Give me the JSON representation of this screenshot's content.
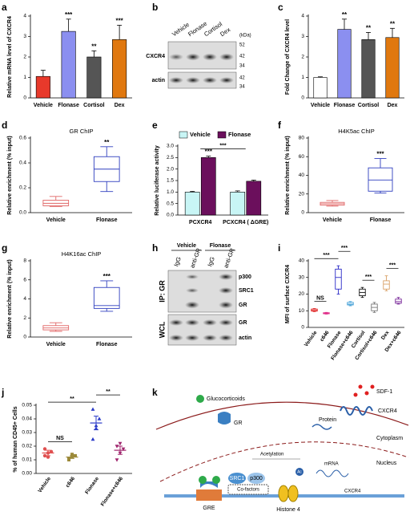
{
  "chart_data": [
    {
      "type": "bar",
      "panel": "a",
      "ylabel": "Relative mRNA level of CXCR4",
      "categories": [
        "Vehicle",
        "Flonase",
        "Cortisol",
        "Dex"
      ],
      "values": [
        1.05,
        3.25,
        2.0,
        2.85
      ],
      "errors": [
        0.3,
        0.6,
        0.3,
        0.7
      ],
      "colors": [
        "#e8392b",
        "#8b8ff0",
        "#555555",
        "#e0780f"
      ],
      "significance": [
        null,
        "***",
        "**",
        "***"
      ],
      "ylim": [
        0,
        4
      ],
      "yticks": [
        0,
        1,
        2,
        3,
        4
      ]
    },
    {
      "type": "bar",
      "panel": "c",
      "ylabel": "Fold Change of CXCR4 level",
      "categories": [
        "Vehicle",
        "Flonase",
        "Cortisol",
        "Dex"
      ],
      "values": [
        1.0,
        3.35,
        2.85,
        2.95
      ],
      "errors": [
        0.03,
        0.5,
        0.35,
        0.45
      ],
      "colors": [
        "#ffffff",
        "#8b8ff0",
        "#555555",
        "#e0780f"
      ],
      "significance": [
        null,
        "**",
        "**",
        "**"
      ],
      "ylim": [
        0,
        4
      ],
      "yticks": [
        0,
        1,
        2,
        3,
        4
      ]
    },
    {
      "type": "box",
      "panel": "d",
      "title": "GR ChIP",
      "ylabel": "Relative enrichment (% input)",
      "categories": [
        "Vehicle",
        "Flonase"
      ],
      "boxes": [
        {
          "min": 0.05,
          "q1": 0.055,
          "median": 0.075,
          "q3": 0.1,
          "max": 0.13
        },
        {
          "min": 0.17,
          "q1": 0.25,
          "median": 0.35,
          "q3": 0.45,
          "max": 0.53
        }
      ],
      "colors": [
        "#e06666",
        "#2f3fbf"
      ],
      "significance": [
        null,
        "**"
      ],
      "ylim": [
        0,
        0.6
      ],
      "yticks": [
        {
          "value": 0,
          "label": "0.0"
        },
        {
          "value": 0.2,
          "label": "0.2"
        },
        {
          "value": 0.4,
          "label": "0.4"
        },
        {
          "value": 0.6,
          "label": "0.6"
        }
      ]
    },
    {
      "type": "grouped-bar",
      "panel": "e",
      "ylabel": "Relative luciferase activity",
      "categories": [
        "PCXCR4",
        "PCXCR4 ( ΔGRE)"
      ],
      "series": [
        {
          "name": "Vehicle",
          "color": "#c8f5f5",
          "values": [
            1.0,
            1.0
          ],
          "errors": [
            0.03,
            0.05
          ]
        },
        {
          "name": "Flonase",
          "color": "#6b0f5c",
          "values": [
            2.5,
            1.47
          ],
          "errors": [
            0.06,
            0.05
          ],
          "significance": [
            "***",
            null
          ]
        }
      ],
      "comparisons": [
        {
          "between": [
            "PCXCR4",
            "PCXCR4 ( ΔGRE)"
          ],
          "label": "***"
        }
      ],
      "ylim": [
        0,
        3
      ],
      "yticks": [
        {
          "value": 0,
          "label": "0.0"
        },
        {
          "value": 0.5,
          "label": "0.5"
        },
        {
          "value": 1,
          "label": "1.0"
        },
        {
          "value": 1.5,
          "label": "1.5"
        },
        {
          "value": 2,
          "label": "2.0"
        },
        {
          "value": 2.5,
          "label": "2.5"
        },
        {
          "value": 3,
          "label": "3.0"
        }
      ]
    },
    {
      "type": "box",
      "panel": "f",
      "title": "H4K5ac ChIP",
      "ylabel": "Relative enrichment (% input)",
      "categories": [
        "Vehicle",
        "Flonase"
      ],
      "boxes": [
        {
          "min": 7,
          "q1": 8,
          "median": 9.5,
          "q3": 11,
          "max": 13
        },
        {
          "min": 21,
          "q1": 23,
          "median": 35,
          "q3": 48,
          "max": 58
        }
      ],
      "colors": [
        "#e06666",
        "#2f3fbf"
      ],
      "significance": [
        null,
        "***"
      ],
      "ylim": [
        0,
        80
      ],
      "yticks": [
        0,
        20,
        40,
        60,
        80
      ]
    },
    {
      "type": "box",
      "panel": "g",
      "title": "H4K16ac ChIP",
      "ylabel": "Relative enrichment (% input)",
      "categories": [
        "Vehicle",
        "Flonase"
      ],
      "boxes": [
        {
          "min": 0.6,
          "q1": 0.75,
          "median": 0.95,
          "q3": 1.2,
          "max": 1.5
        },
        {
          "min": 2.7,
          "q1": 3.0,
          "median": 3.3,
          "q3": 5.2,
          "max": 5.9
        }
      ],
      "colors": [
        "#e06666",
        "#2f3fbf"
      ],
      "significance": [
        null,
        "***"
      ],
      "ylim": [
        0,
        8
      ],
      "yticks": [
        0,
        2,
        4,
        6,
        8
      ]
    },
    {
      "type": "box",
      "panel": "i",
      "ylabel": "MFI of surface CXCR4",
      "categories": [
        "Vehicle",
        "c646",
        "Flonase",
        "Flonase+c646",
        "Cortisol",
        "Cortisol+c646",
        "Dex",
        "Dex+c646"
      ],
      "boxes": [
        {
          "min": 9.5,
          "q1": 9.8,
          "median": 10.2,
          "q3": 11,
          "max": 11.3
        },
        {
          "min": 8,
          "q1": 8.2,
          "median": 8.5,
          "q3": 8.8,
          "max": 9
        },
        {
          "min": 20,
          "q1": 23,
          "median": 30,
          "q3": 35,
          "max": 37
        },
        {
          "min": 13,
          "q1": 13.5,
          "median": 14,
          "q3": 15,
          "max": 15.5
        },
        {
          "min": 18,
          "q1": 19,
          "median": 21,
          "q3": 23,
          "max": 24
        },
        {
          "min": 9,
          "q1": 10,
          "median": 12,
          "q3": 14,
          "max": 15
        },
        {
          "min": 22,
          "q1": 23,
          "median": 26,
          "q3": 28,
          "max": 31
        },
        {
          "min": 14,
          "q1": 14.5,
          "median": 15.5,
          "q3": 17,
          "max": 18
        }
      ],
      "colors": [
        "#e02020",
        "#e0308a",
        "#2b2bc8",
        "#4aa3d8",
        "#111111",
        "#777777",
        "#d9a066",
        "#7a2a9a"
      ],
      "comparisons": [
        {
          "between": [
            "Vehicle",
            "c646"
          ],
          "label": "NS"
        },
        {
          "between": [
            "Vehicle",
            "Flonase"
          ],
          "label": "***"
        },
        {
          "between": [
            "Flonase",
            "Flonase+c646"
          ],
          "label": "***"
        },
        {
          "between": [
            "Cortisol",
            "Cortisol+c646"
          ],
          "label": "***"
        },
        {
          "between": [
            "Dex",
            "Dex+c646"
          ],
          "label": "***"
        }
      ],
      "ylim": [
        0,
        40
      ],
      "yticks": [
        0,
        10,
        20,
        30,
        40
      ]
    },
    {
      "type": "dot",
      "panel": "j",
      "ylabel": "% of human CD45+ Cells",
      "categories": [
        "Vehicle",
        "c646",
        "Flonase",
        "Flonase+c646"
      ],
      "values": [
        [
          0.013,
          0.015,
          0.016,
          0.018,
          0.012
        ],
        [
          0.011,
          0.012,
          0.013,
          0.01,
          0.014
        ],
        [
          0.025,
          0.033,
          0.04,
          0.047,
          0.035
        ],
        [
          0.01,
          0.015,
          0.018,
          0.02,
          0.022
        ]
      ],
      "means": [
        0.015,
        0.012,
        0.037,
        0.017
      ],
      "errors": [
        0.002,
        0.001,
        0.005,
        0.003
      ],
      "colors": [
        "#e05050",
        "#9c8a3a",
        "#2b3bc8",
        "#a0266e"
      ],
      "markers": [
        "circle",
        "square",
        "triangle",
        "triangle-down"
      ],
      "comparisons": [
        {
          "between": [
            "Vehicle",
            "c646"
          ],
          "label": "NS"
        },
        {
          "between": [
            "Vehicle",
            "Flonase"
          ],
          "label": "**"
        },
        {
          "between": [
            "Flonase",
            "Flonase+c646"
          ],
          "label": "**"
        }
      ],
      "ylim": [
        0,
        0.05
      ],
      "yticks": [
        {
          "value": 0,
          "label": "0.00"
        },
        {
          "value": 0.01,
          "label": "0.01"
        },
        {
          "value": 0.02,
          "label": "0.02"
        },
        {
          "value": 0.03,
          "label": "0.03"
        },
        {
          "value": 0.04,
          "label": "0.04"
        },
        {
          "value": 0.05,
          "label": "0.05"
        }
      ]
    }
  ],
  "blot_b": {
    "panel": "b",
    "lanes": [
      "Vehicle",
      "Flonase",
      "Cortisol",
      "Dex"
    ],
    "unit": "(kDa)",
    "markers": [
      52,
      42,
      34,
      42,
      34
    ],
    "rows": [
      "CXCR4",
      "actin"
    ]
  },
  "blot_h": {
    "panel": "h",
    "groups": [
      "Vehicle",
      "Flonase"
    ],
    "lanes": [
      "IgG",
      "anti-GR",
      "IgG",
      "anti-GR"
    ],
    "rows": [
      "p300",
      "SRC1",
      "GR",
      "GR",
      "actin"
    ],
    "sections": [
      "IP: GR",
      "WCL"
    ]
  },
  "diagram_k": {
    "panel": "k",
    "labels": {
      "glucocorticoids": "Glucocorticoids",
      "sdf1": "SDF-1",
      "gr": "GR",
      "protein": "Protein",
      "receptor": "CXCR4",
      "cytoplasm": "Cytoplasm",
      "acetylation": "Acetylation",
      "nucleus": "Nucleus",
      "src1": "SRC1",
      "p300": "p300",
      "cofactors": "Co-factors",
      "mrna": "mRNA",
      "gre": "GRE",
      "histone": "Histone 4",
      "gene": "CXCR4",
      "ac": "Ac"
    }
  }
}
